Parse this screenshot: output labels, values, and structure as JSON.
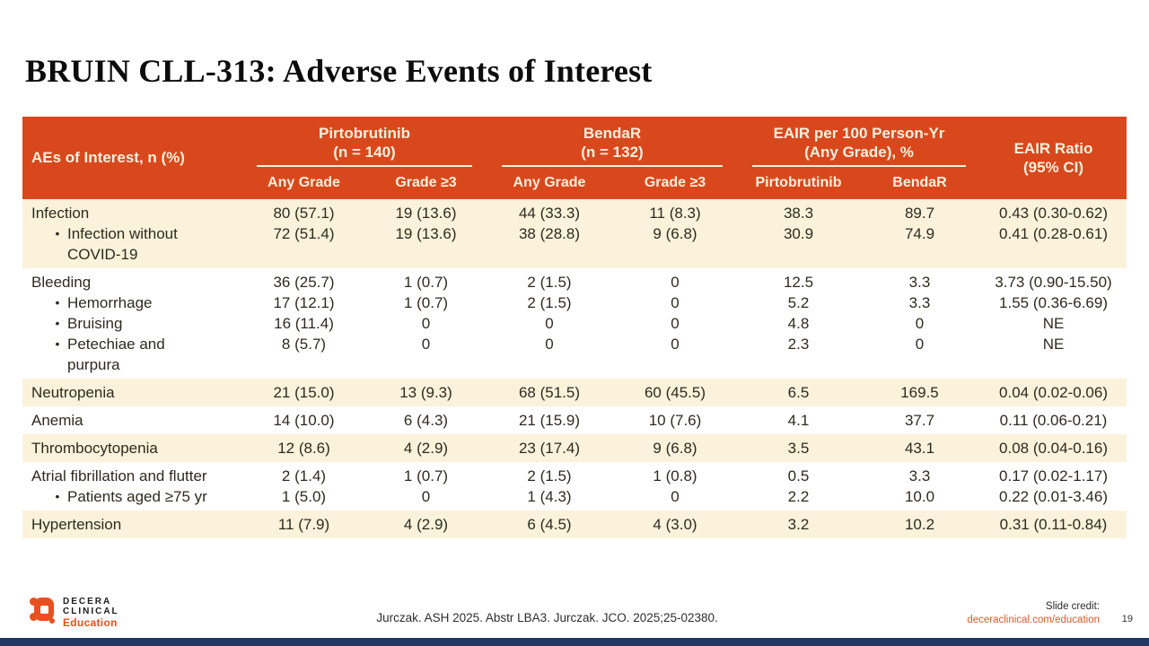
{
  "title": "BRUIN CLL-313: Adverse Events of Interest",
  "colors": {
    "header_orange": "#D9481D",
    "row_cream": "#FAF2DA",
    "header_text_cream": "#FAF0DC",
    "logo_orange": "#E8501F",
    "link_orange": "#D85B2B",
    "bottom_bar_navy": "#203864"
  },
  "table": {
    "corner_label": "AEs of Interest, n (%)",
    "groups": [
      {
        "label": "Pirtobrutinib",
        "sub": "(n = 140)"
      },
      {
        "label": "BendaR",
        "sub": "(n = 132)"
      },
      {
        "label": "EAIR per 100 Person-Yr",
        "sub": "(Any Grade), %"
      },
      {
        "label": "EAIR Ratio",
        "sub": "(95% CI)"
      }
    ],
    "subheaders": [
      "Any Grade",
      "Grade ≥3",
      "Any Grade",
      "Grade ≥3",
      "Pirtobrutinib",
      "BendaR"
    ],
    "rows": [
      {
        "shade": "cream",
        "lines": [
          {
            "label": "Infection",
            "bullet": false,
            "values": [
              "80 (57.1)",
              "19 (13.6)",
              "44 (33.3)",
              "11 (8.3)",
              "38.3",
              "89.7",
              "0.43 (0.30-0.62)"
            ]
          },
          {
            "label": "Infection without COVID-19",
            "bullet": true,
            "values": [
              "72 (51.4)",
              "19 (13.6)",
              "38 (28.8)",
              "9 (6.8)",
              "30.9",
              "74.9",
              "0.41 (0.28-0.61)"
            ]
          }
        ]
      },
      {
        "shade": "white",
        "lines": [
          {
            "label": "Bleeding",
            "bullet": false,
            "values": [
              "36 (25.7)",
              "1 (0.7)",
              "2 (1.5)",
              "0",
              "12.5",
              "3.3",
              "3.73 (0.90-15.50)"
            ]
          },
          {
            "label": "Hemorrhage",
            "bullet": true,
            "values": [
              "17 (12.1)",
              "1 (0.7)",
              "2 (1.5)",
              "0",
              "5.2",
              "3.3",
              "1.55 (0.36-6.69)"
            ]
          },
          {
            "label": "Bruising",
            "bullet": true,
            "values": [
              "16 (11.4)",
              "0",
              "0",
              "0",
              "4.8",
              "0",
              "NE"
            ]
          },
          {
            "label": "Petechiae and purpura",
            "bullet": true,
            "values": [
              "8 (5.7)",
              "0",
              "0",
              "0",
              "2.3",
              "0",
              "NE"
            ]
          }
        ]
      },
      {
        "shade": "cream",
        "lines": [
          {
            "label": "Neutropenia",
            "bullet": false,
            "values": [
              "21 (15.0)",
              "13 (9.3)",
              "68 (51.5)",
              "60 (45.5)",
              "6.5",
              "169.5",
              "0.04 (0.02-0.06)"
            ]
          }
        ]
      },
      {
        "shade": "white",
        "lines": [
          {
            "label": "Anemia",
            "bullet": false,
            "values": [
              "14 (10.0)",
              "6 (4.3)",
              "21 (15.9)",
              "10 (7.6)",
              "4.1",
              "37.7",
              "0.11 (0.06-0.21)"
            ]
          }
        ]
      },
      {
        "shade": "cream",
        "lines": [
          {
            "label": "Thrombocytopenia",
            "bullet": false,
            "values": [
              "12 (8.6)",
              "4 (2.9)",
              "23 (17.4)",
              "9 (6.8)",
              "3.5",
              "43.1",
              "0.08 (0.04-0.16)"
            ]
          }
        ]
      },
      {
        "shade": "white",
        "lines": [
          {
            "label": "Atrial fibrillation and flutter",
            "bullet": false,
            "valign": "bottom",
            "values": [
              "2 (1.4)",
              "1 (0.7)",
              "2 (1.5)",
              "1 (0.8)",
              "0.5",
              "3.3",
              "0.17 (0.02-1.17)"
            ]
          },
          {
            "label": "Patients aged ≥75 yr",
            "bullet": true,
            "values": [
              "1 (5.0)",
              "0",
              "1 (4.3)",
              "0",
              "2.2",
              "10.0",
              "0.22 (0.01-3.46)"
            ]
          }
        ]
      },
      {
        "shade": "cream",
        "lines": [
          {
            "label": "Hypertension",
            "bullet": false,
            "values": [
              "11 (7.9)",
              "4 (2.9)",
              "6 (4.5)",
              "4 (3.0)",
              "3.2",
              "10.2",
              "0.31 (0.11-0.84)"
            ]
          }
        ]
      }
    ]
  },
  "footer": {
    "logo_line1": "DECERA",
    "logo_line2": "CLINICAL",
    "logo_line3": "Education",
    "citation": "Jurczak. ASH 2025. Abstr LBA3. Jurczak. JCO. 2025;25-02380.",
    "slide_credit_label": "Slide credit:",
    "slide_credit_link": "deceraclinical.com/education",
    "page_number": "19"
  }
}
